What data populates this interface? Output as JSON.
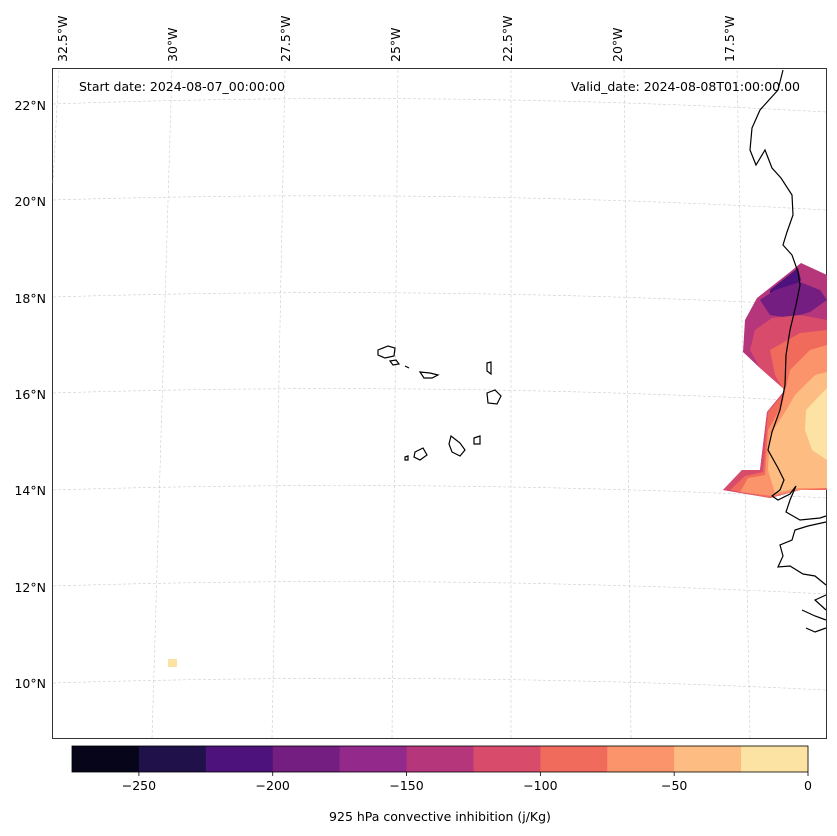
{
  "map": {
    "start_date": "Start date: 2024-08-07_00:00:00",
    "valid_date": "Valid_date: 2024-08-08T01:00:00.00",
    "lon_labels": [
      "32.5°W",
      "30°W",
      "27.5°W",
      "25°W",
      "22.5°W",
      "20°W",
      "17.5°W"
    ],
    "lat_labels": [
      "22°N",
      "20°N",
      "18°N",
      "16°N",
      "14°N",
      "12°N",
      "10°N"
    ],
    "grid_visible": true,
    "projection": "Lambert conformal",
    "features": [
      "Cape Verde islands",
      "West African coastline (Mauritania, Senegal, Gambia, Guinea-Bissau)"
    ]
  },
  "colorbar": {
    "label": "925 hPa convective inhibition (j/Kg)",
    "tick_labels": [
      "−250",
      "−200",
      "−150",
      "−100",
      "−50",
      "0"
    ],
    "levels": [
      -275,
      -250,
      -225,
      -200,
      -175,
      -150,
      -125,
      -100,
      -75,
      -50,
      -25,
      0
    ],
    "colors": [
      "#06051a",
      "#20114b",
      "#4d127b",
      "#741e82",
      "#93298a",
      "#b5367a",
      "#d84b6a",
      "#f06b5b",
      "#fb946a",
      "#fdbd82",
      "#fce3a3"
    ],
    "colormap": "magma"
  }
}
